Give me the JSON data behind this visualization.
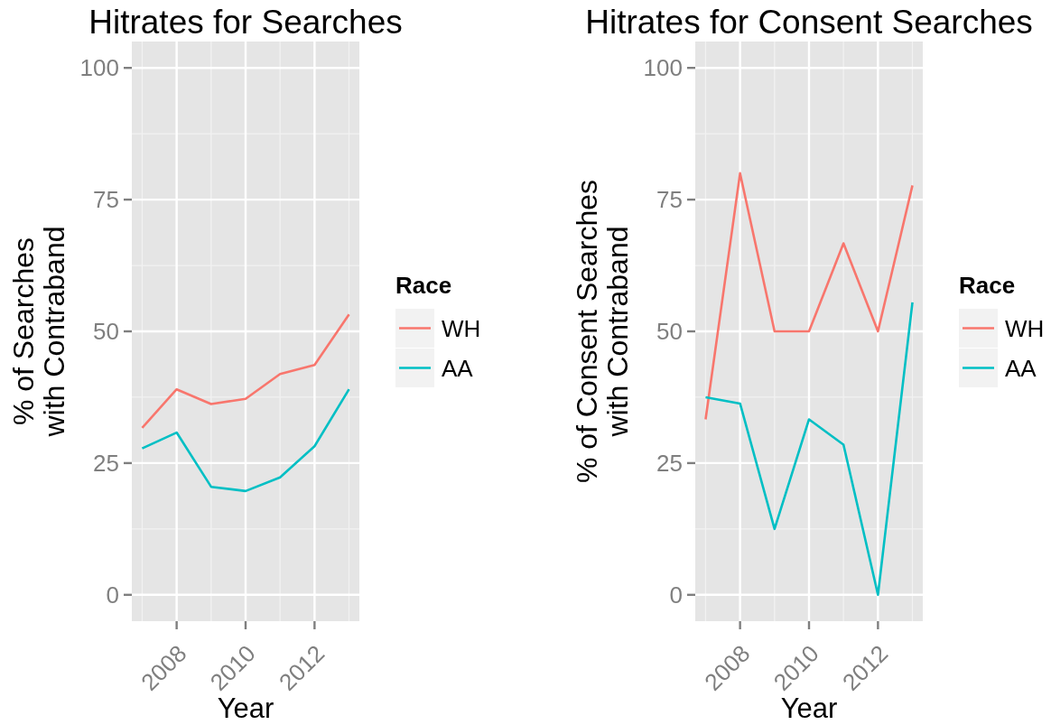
{
  "chart_data": [
    {
      "type": "line",
      "title": "Hitrates for Searches",
      "xlabel": "Year",
      "ylabel": "% of Searches\nwith Contraband",
      "legend_title": "Race",
      "legend": "right",
      "grid": true,
      "x": [
        2007,
        2008,
        2009,
        2010,
        2011,
        2012,
        2013
      ],
      "xlim": [
        2006.7,
        2013.3
      ],
      "xticks": [
        2008,
        2010,
        2012
      ],
      "ylim": [
        -5,
        105
      ],
      "yticks": [
        0,
        25,
        50,
        75,
        100
      ],
      "series": [
        {
          "name": "WH",
          "color": "#f8766d",
          "values": [
            31.7,
            39.0,
            36.2,
            37.2,
            41.9,
            43.6,
            53.2
          ]
        },
        {
          "name": "AA",
          "color": "#00bfc4",
          "values": [
            27.8,
            30.8,
            20.5,
            19.7,
            22.3,
            28.2,
            39.0
          ]
        }
      ]
    },
    {
      "type": "line",
      "title": "Hitrates for Consent Searches",
      "xlabel": "Year",
      "ylabel": "% of Consent Searches\nwith Contraband",
      "legend_title": "Race",
      "legend": "right",
      "grid": true,
      "x": [
        2007,
        2008,
        2009,
        2010,
        2011,
        2012,
        2013
      ],
      "xlim": [
        2006.7,
        2013.3
      ],
      "xticks": [
        2008,
        2010,
        2012
      ],
      "ylim": [
        -5,
        105
      ],
      "yticks": [
        0,
        25,
        50,
        75,
        100
      ],
      "series": [
        {
          "name": "WH",
          "color": "#f8766d",
          "values": [
            33.3,
            80.0,
            50.0,
            50.0,
            66.7,
            50.0,
            77.7
          ]
        },
        {
          "name": "AA",
          "color": "#00bfc4",
          "values": [
            37.5,
            36.3,
            12.5,
            33.3,
            28.5,
            0,
            55.5
          ]
        }
      ]
    }
  ]
}
